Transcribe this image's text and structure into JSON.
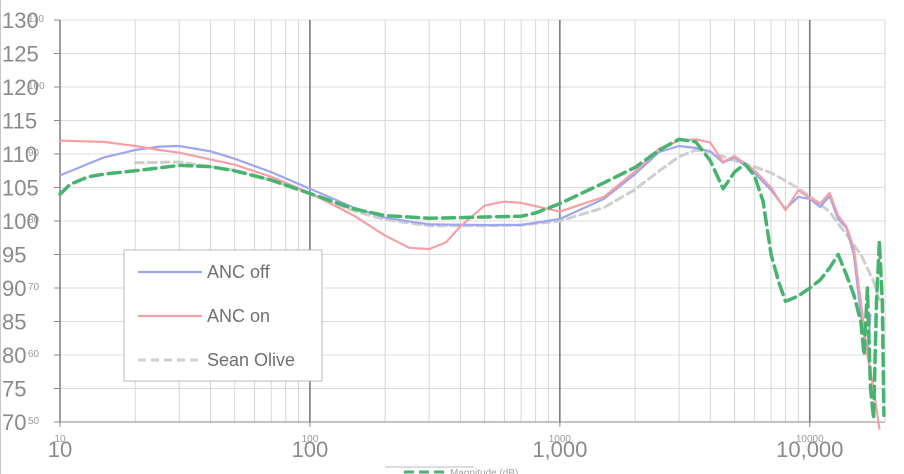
{
  "chart_data": {
    "type": "line",
    "x_scale": "log",
    "xlim": [
      10,
      20000
    ],
    "ylim": [
      70,
      130
    ],
    "grid": true,
    "legend_position": "bottom-left",
    "y_ticks": [
      130,
      125,
      120,
      115,
      110,
      105,
      100,
      95,
      90,
      85,
      80,
      75,
      70
    ],
    "y_tick_labels": [
      "130",
      "125",
      "120",
      "115",
      "110",
      "105",
      "100",
      "95",
      "90",
      "85",
      "80",
      "75",
      "70"
    ],
    "y_small_ticks": [
      110,
      100,
      90,
      80,
      70,
      60,
      50
    ],
    "y_small_tick_labels": [
      "110",
      "100",
      "90",
      "80",
      "70",
      "60",
      "50"
    ],
    "x_ticks": [
      10,
      100,
      1000,
      10000
    ],
    "x_tick_labels": [
      "10",
      "100",
      "1,000",
      "10,000"
    ],
    "x_small_tick_labels": [
      "10",
      "100",
      "1000",
      "10000"
    ],
    "bottom_label": "Magnitude (dB)",
    "series": [
      {
        "name": "ANC off",
        "color": "#9da6ee",
        "dash": "solid",
        "points": [
          [
            10,
            106.8
          ],
          [
            15,
            109.5
          ],
          [
            20,
            110.6
          ],
          [
            25,
            111.1
          ],
          [
            30,
            111.2
          ],
          [
            40,
            110.4
          ],
          [
            50,
            109.3
          ],
          [
            70,
            107.3
          ],
          [
            100,
            104.8
          ],
          [
            150,
            102.0
          ],
          [
            200,
            100.5
          ],
          [
            300,
            99.5
          ],
          [
            500,
            99.4
          ],
          [
            700,
            99.4
          ],
          [
            1000,
            100.3
          ],
          [
            1500,
            103.3
          ],
          [
            2000,
            107.0
          ],
          [
            2500,
            110.3
          ],
          [
            3000,
            111.2
          ],
          [
            3500,
            110.9
          ],
          [
            4000,
            110.4
          ],
          [
            4500,
            108.7
          ],
          [
            5000,
            109.5
          ],
          [
            6000,
            107.2
          ],
          [
            7000,
            104.6
          ],
          [
            8000,
            101.8
          ],
          [
            9000,
            103.6
          ],
          [
            10000,
            103.3
          ],
          [
            11000,
            102.1
          ],
          [
            12000,
            103.7
          ],
          [
            13000,
            100.3
          ],
          [
            14000,
            99.0
          ],
          [
            15000,
            95.0
          ],
          [
            16000,
            86.0
          ],
          [
            17000,
            80.0
          ],
          [
            17500,
            86.0
          ]
        ]
      },
      {
        "name": "ANC on",
        "color": "#f4a0a6",
        "dash": "solid",
        "points": [
          [
            10,
            112.0
          ],
          [
            15,
            111.8
          ],
          [
            20,
            111.2
          ],
          [
            25,
            110.6
          ],
          [
            30,
            110.2
          ],
          [
            40,
            109.2
          ],
          [
            50,
            108.4
          ],
          [
            70,
            106.6
          ],
          [
            100,
            104.2
          ],
          [
            150,
            100.8
          ],
          [
            200,
            97.8
          ],
          [
            250,
            96.0
          ],
          [
            300,
            95.8
          ],
          [
            350,
            96.8
          ],
          [
            400,
            99.2
          ],
          [
            500,
            102.3
          ],
          [
            600,
            102.9
          ],
          [
            700,
            102.7
          ],
          [
            1000,
            101.4
          ],
          [
            1500,
            103.6
          ],
          [
            2000,
            107.4
          ],
          [
            2500,
            110.8
          ],
          [
            3000,
            112.0
          ],
          [
            3500,
            112.2
          ],
          [
            4000,
            111.7
          ],
          [
            4500,
            108.8
          ],
          [
            5000,
            109.7
          ],
          [
            6000,
            107.6
          ],
          [
            7000,
            105.0
          ],
          [
            8000,
            101.6
          ],
          [
            9000,
            104.6
          ],
          [
            10000,
            103.4
          ],
          [
            11000,
            102.6
          ],
          [
            12000,
            104.2
          ],
          [
            13000,
            100.8
          ],
          [
            14000,
            99.2
          ],
          [
            15000,
            96.0
          ],
          [
            16000,
            88.0
          ],
          [
            17000,
            80.0
          ],
          [
            18000,
            75.0
          ],
          [
            19000,
            69.0
          ]
        ]
      },
      {
        "name": "Sean Olive",
        "color": "#cfcfcf",
        "dash": "dashed",
        "points": [
          [
            20,
            108.7
          ],
          [
            30,
            108.8
          ],
          [
            50,
            107.6
          ],
          [
            70,
            106.1
          ],
          [
            100,
            104.1
          ],
          [
            150,
            101.5
          ],
          [
            200,
            100.2
          ],
          [
            300,
            99.3
          ],
          [
            500,
            99.3
          ],
          [
            700,
            99.4
          ],
          [
            1000,
            100.0
          ],
          [
            1500,
            102.0
          ],
          [
            2000,
            104.7
          ],
          [
            2500,
            107.5
          ],
          [
            3000,
            109.6
          ],
          [
            3500,
            110.6
          ],
          [
            4000,
            110.3
          ],
          [
            5000,
            109.0
          ],
          [
            6000,
            108.1
          ],
          [
            7000,
            107.2
          ],
          [
            8000,
            106.0
          ],
          [
            9000,
            104.9
          ],
          [
            10000,
            103.7
          ],
          [
            12000,
            101.4
          ],
          [
            13000,
            99.6
          ],
          [
            14000,
            98.0
          ],
          [
            16000,
            95.0
          ],
          [
            18000,
            91.0
          ],
          [
            19000,
            88.0
          ]
        ]
      },
      {
        "name": "Magnitude (dB)",
        "color": "#46b46e",
        "dash": "dashed",
        "points": [
          [
            10,
            104.0
          ],
          [
            11,
            105.5
          ],
          [
            13,
            106.6
          ],
          [
            15,
            107.0
          ],
          [
            20,
            107.5
          ],
          [
            30,
            108.3
          ],
          [
            40,
            108.1
          ],
          [
            50,
            107.5
          ],
          [
            70,
            106.1
          ],
          [
            100,
            104.1
          ],
          [
            150,
            101.8
          ],
          [
            200,
            100.8
          ],
          [
            300,
            100.4
          ],
          [
            500,
            100.6
          ],
          [
            700,
            100.7
          ],
          [
            800,
            101.2
          ],
          [
            1000,
            102.6
          ],
          [
            1500,
            105.7
          ],
          [
            2000,
            108.0
          ],
          [
            2500,
            110.6
          ],
          [
            3000,
            112.2
          ],
          [
            3500,
            111.8
          ],
          [
            4000,
            109.0
          ],
          [
            4500,
            104.8
          ],
          [
            5000,
            107.3
          ],
          [
            5500,
            108.5
          ],
          [
            6000,
            106.8
          ],
          [
            6500,
            103.0
          ],
          [
            7000,
            95.0
          ],
          [
            7500,
            91.0
          ],
          [
            8000,
            88.0
          ],
          [
            9000,
            88.8
          ],
          [
            10000,
            90.0
          ],
          [
            11000,
            91.2
          ],
          [
            12000,
            93.0
          ],
          [
            13000,
            95.0
          ],
          [
            14000,
            92.0
          ],
          [
            15000,
            89.0
          ],
          [
            16000,
            85.0
          ],
          [
            16500,
            80.0
          ],
          [
            17000,
            90.0
          ],
          [
            17500,
            75.0
          ],
          [
            18000,
            70.5
          ],
          [
            18500,
            88.0
          ],
          [
            19000,
            97.0
          ],
          [
            19500,
            88.0
          ],
          [
            19800,
            71.0
          ]
        ]
      }
    ]
  }
}
